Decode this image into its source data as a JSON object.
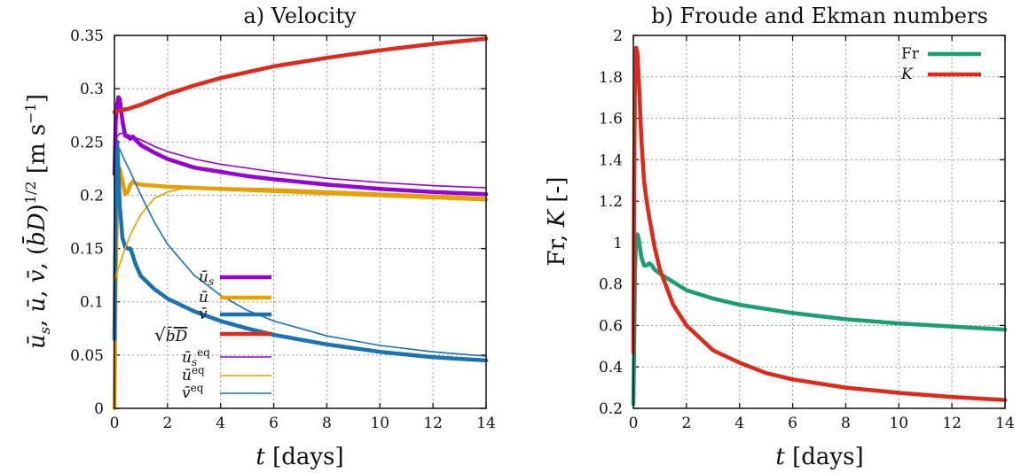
{
  "chart_data": [
    {
      "type": "line",
      "title": "a) Velocity",
      "xlabel": "t [days]",
      "ylabel": "ū_s, ū, v̄, (b̄D)^{1/2} [m s⁻¹]",
      "xlim": [
        0,
        14
      ],
      "ylim": [
        0,
        0.35
      ],
      "xticks": [
        "0",
        "2",
        "4",
        "6",
        "8",
        "10",
        "12",
        "14"
      ],
      "yticks": [
        "0",
        "0.05",
        "0.1",
        "0.15",
        "0.2",
        "0.25",
        "0.3",
        "0.35"
      ],
      "grid": true,
      "legend_position": "center",
      "series": [
        {
          "name": "ū_s",
          "color": "#9400d3",
          "width": "thick",
          "x": [
            0,
            0.05,
            0.1,
            0.15,
            0.2,
            0.3,
            0.4,
            0.5,
            0.6,
            0.7,
            0.8,
            1,
            1.5,
            2,
            3,
            4,
            5,
            6,
            8,
            10,
            12,
            14
          ],
          "y": [
            0.22,
            0.27,
            0.285,
            0.292,
            0.29,
            0.27,
            0.256,
            0.255,
            0.253,
            0.255,
            0.252,
            0.247,
            0.24,
            0.234,
            0.226,
            0.222,
            0.218,
            0.215,
            0.21,
            0.206,
            0.203,
            0.201
          ]
        },
        {
          "name": "ū",
          "color": "#e5a000",
          "width": "thick",
          "x": [
            0,
            0.05,
            0.1,
            0.2,
            0.3,
            0.4,
            0.5,
            0.6,
            0.7,
            0.8,
            1,
            1.5,
            2,
            3,
            4,
            6,
            8,
            10,
            12,
            14
          ],
          "y": [
            0.0,
            0.13,
            0.19,
            0.225,
            0.214,
            0.201,
            0.203,
            0.21,
            0.213,
            0.211,
            0.21,
            0.209,
            0.208,
            0.207,
            0.206,
            0.204,
            0.202,
            0.2,
            0.198,
            0.196
          ]
        },
        {
          "name": "v̄",
          "color": "#1a72b2",
          "width": "thick",
          "x": [
            0,
            0.03,
            0.06,
            0.1,
            0.15,
            0.2,
            0.3,
            0.4,
            0.5,
            0.6,
            0.7,
            0.8,
            1,
            1.5,
            2,
            3,
            4,
            5,
            6,
            8,
            10,
            12,
            14
          ],
          "y": [
            0.065,
            0.15,
            0.22,
            0.25,
            0.225,
            0.19,
            0.16,
            0.152,
            0.15,
            0.15,
            0.143,
            0.135,
            0.124,
            0.112,
            0.103,
            0.091,
            0.082,
            0.075,
            0.069,
            0.06,
            0.053,
            0.048,
            0.045
          ]
        },
        {
          "name": "√(b̄D)",
          "color": "#dd2a1b",
          "width": "thick",
          "x": [
            0,
            0.1,
            0.5,
            1,
            2,
            3,
            4,
            6,
            8,
            10,
            12,
            14
          ],
          "y": [
            0.278,
            0.279,
            0.281,
            0.285,
            0.295,
            0.303,
            0.31,
            0.321,
            0.329,
            0.336,
            0.342,
            0.347
          ]
        },
        {
          "name": "ū_s^eq",
          "color": "#9400d3",
          "width": "thin",
          "x": [
            0,
            0.05,
            0.1,
            0.2,
            0.4,
            0.6,
            1,
            1.5,
            2,
            3,
            4,
            6,
            8,
            10,
            12,
            14
          ],
          "y": [
            0.21,
            0.247,
            0.255,
            0.258,
            0.258,
            0.256,
            0.252,
            0.246,
            0.241,
            0.234,
            0.229,
            0.222,
            0.216,
            0.212,
            0.209,
            0.207
          ]
        },
        {
          "name": "ū^eq",
          "color": "#e5a000",
          "width": "thin",
          "x": [
            0,
            0.05,
            0.1,
            0.2,
            0.4,
            0.6,
            1,
            1.5,
            2,
            2.5,
            3,
            4,
            6,
            8,
            10,
            12,
            14
          ],
          "y": [
            0.12,
            0.124,
            0.128,
            0.135,
            0.15,
            0.163,
            0.182,
            0.197,
            0.203,
            0.206,
            0.207,
            0.207,
            0.206,
            0.204,
            0.202,
            0.2,
            0.198
          ]
        },
        {
          "name": "v̄^eq",
          "color": "#1a72b2",
          "width": "thin",
          "x": [
            0,
            0.05,
            0.1,
            0.2,
            0.4,
            0.6,
            1,
            1.5,
            2,
            3,
            4,
            5,
            6,
            8,
            10,
            12,
            14
          ],
          "y": [
            0.2,
            0.238,
            0.247,
            0.243,
            0.232,
            0.222,
            0.2,
            0.175,
            0.154,
            0.125,
            0.106,
            0.092,
            0.082,
            0.068,
            0.059,
            0.053,
            0.049
          ]
        }
      ]
    },
    {
      "type": "line",
      "title": "b) Froude and Ekman numbers",
      "xlabel": "t [days]",
      "ylabel": "Fr, K [-]",
      "xlim": [
        0,
        14
      ],
      "ylim": [
        0.2,
        2
      ],
      "xticks": [
        "0",
        "2",
        "4",
        "6",
        "8",
        "10",
        "12",
        "14"
      ],
      "yticks": [
        "0.2",
        "0.4",
        "0.6",
        "0.8",
        "1",
        "1.2",
        "1.4",
        "1.6",
        "1.8",
        "2"
      ],
      "grid": true,
      "legend_position": "top-right",
      "series": [
        {
          "name": "Fr",
          "color": "#1a9e74",
          "width": "thick",
          "x": [
            0,
            0.03,
            0.06,
            0.1,
            0.15,
            0.2,
            0.3,
            0.4,
            0.5,
            0.6,
            0.7,
            0.8,
            0.9,
            1,
            1.5,
            2,
            3,
            4,
            6,
            8,
            10,
            12,
            14
          ],
          "y": [
            0.22,
            0.5,
            0.85,
            1.01,
            1.04,
            1.02,
            0.93,
            0.89,
            0.89,
            0.9,
            0.89,
            0.87,
            0.86,
            0.85,
            0.81,
            0.77,
            0.73,
            0.7,
            0.66,
            0.63,
            0.61,
            0.595,
            0.58
          ]
        },
        {
          "name": "K",
          "color": "#dd2a1b",
          "width": "thick",
          "x": [
            0,
            0.03,
            0.06,
            0.1,
            0.15,
            0.2,
            0.3,
            0.4,
            0.5,
            0.6,
            0.8,
            1,
            1.5,
            2,
            3,
            4,
            5,
            6,
            8,
            10,
            12,
            14
          ],
          "y": [
            0.47,
            1.3,
            1.8,
            1.94,
            1.92,
            1.8,
            1.5,
            1.3,
            1.2,
            1.12,
            0.98,
            0.87,
            0.7,
            0.6,
            0.48,
            0.42,
            0.37,
            0.34,
            0.3,
            0.275,
            0.255,
            0.24
          ]
        }
      ]
    }
  ]
}
